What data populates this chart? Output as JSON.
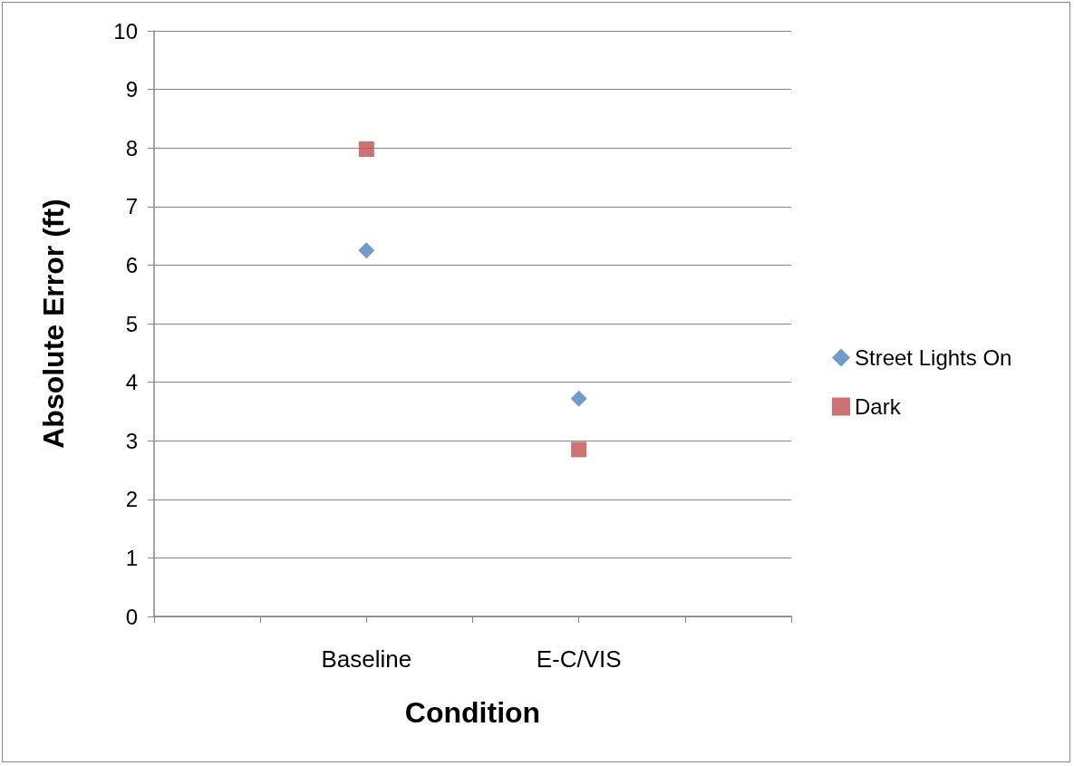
{
  "chart_data": {
    "type": "scatter",
    "xlabel": "Condition",
    "ylabel": "Absolute Error (ft)",
    "categories": [
      null,
      null,
      "Baseline",
      null,
      "E-C/VIS",
      null,
      null
    ],
    "series": [
      {
        "name": "Street Lights On",
        "color": "#4f81bd",
        "marker": "diamond",
        "values": [
          null,
          null,
          6.25,
          null,
          3.72,
          null,
          null
        ]
      },
      {
        "name": "Dark",
        "color": "#c0504d",
        "marker": "square",
        "values": [
          null,
          null,
          7.98,
          null,
          2.85,
          null,
          null
        ]
      }
    ],
    "ylim": [
      0,
      10
    ],
    "yticks": [
      0,
      1,
      2,
      3,
      4,
      5,
      6,
      7,
      8,
      9,
      10
    ],
    "grid": "y",
    "legend": "right"
  }
}
